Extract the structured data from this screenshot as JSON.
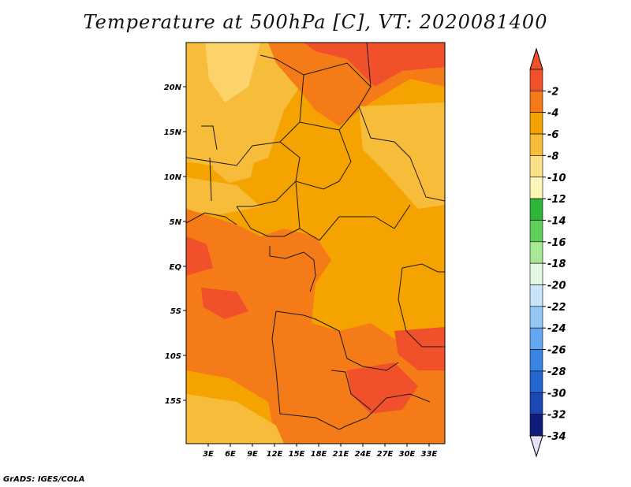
{
  "title": "Temperature at 500hPa [C], VT: 2020081400",
  "footer": "GrADS: IGES/COLA",
  "map": {
    "lat_labels": [
      "20N",
      "15N",
      "10N",
      "5N",
      "EQ",
      "5S",
      "10S",
      "15S"
    ],
    "lon_labels": [
      "3E",
      "6E",
      "9E",
      "12E",
      "15E",
      "18E",
      "21E",
      "24E",
      "27E",
      "30E",
      "33E"
    ]
  },
  "colorbar": {
    "labels": [
      "-2",
      "-4",
      "-6",
      "-8",
      "-10",
      "-12",
      "-14",
      "-16",
      "-18",
      "-20",
      "-22",
      "-24",
      "-26",
      "-28",
      "-30",
      "-32",
      "-34"
    ],
    "colors": [
      "#f0502a",
      "#f57a18",
      "#f5a300",
      "#f7bd3a",
      "#fbe08a",
      "#fff5b8",
      "#2fb53a",
      "#5fce5a",
      "#a6e894",
      "#e3f8e3",
      "#c9e4fb",
      "#96c7f5",
      "#64a7ef",
      "#3a84e1",
      "#2464cd",
      "#1a47b1",
      "#101e7a"
    ],
    "upper_arrow": "#f0502a",
    "lower_arrow": "#e6e3f7"
  }
}
